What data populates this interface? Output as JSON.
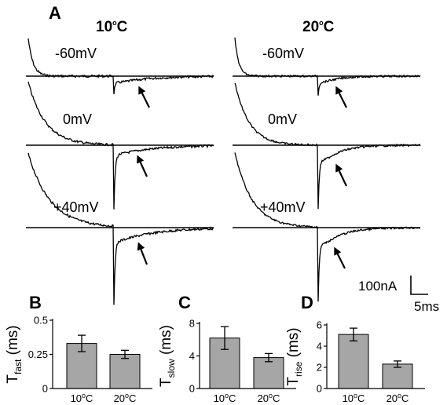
{
  "panels": {
    "A": "A",
    "B": "B",
    "C": "C",
    "D": "D"
  },
  "traces": {
    "columns": [
      {
        "name": "10",
        "unit_sup": "o",
        "unit": "C"
      },
      {
        "name": "20",
        "unit_sup": "o",
        "unit": "C"
      }
    ],
    "voltages": [
      "-60mV",
      "0mV",
      "+40mV"
    ],
    "scale_bar": {
      "current": "100nA",
      "time": "5ms"
    }
  },
  "chart_data": [
    {
      "type": "bar",
      "panel": "B",
      "categories": [
        {
          "main": "10",
          "sup": "o",
          "tail": "C"
        },
        {
          "main": "20",
          "sup": "o",
          "tail": "C"
        }
      ],
      "values": [
        0.33,
        0.25
      ],
      "errors": [
        0.06,
        0.03
      ],
      "ylabel": {
        "main": "T",
        "sub": "fast",
        "tail": " (ms)"
      },
      "ylim": [
        0,
        0.5
      ],
      "yticks": [
        "0",
        "0.25",
        "0.5"
      ],
      "ytick_values": [
        0,
        0.25,
        0.5
      ],
      "bar_color": "#a6a6a6"
    },
    {
      "type": "bar",
      "panel": "C",
      "categories": [
        {
          "main": "10",
          "sup": "o",
          "tail": "C"
        },
        {
          "main": "20",
          "sup": "o",
          "tail": "C"
        }
      ],
      "values": [
        6.2,
        3.8
      ],
      "errors": [
        1.4,
        0.5
      ],
      "ylabel": {
        "main": "T",
        "sub": "slow",
        "tail": " (ms)"
      },
      "ylim": [
        0,
        8
      ],
      "yticks": [
        "0",
        "4",
        "8"
      ],
      "ytick_values": [
        0,
        4,
        8
      ],
      "bar_color": "#a6a6a6"
    },
    {
      "type": "bar",
      "panel": "D",
      "categories": [
        {
          "main": "10",
          "sup": "o",
          "tail": "C"
        },
        {
          "main": "20",
          "sup": "o",
          "tail": "C"
        }
      ],
      "values": [
        5.1,
        2.3
      ],
      "errors": [
        0.6,
        0.3
      ],
      "ylabel": {
        "main": "T",
        "sub": "rise",
        "tail": " (ms)"
      },
      "ylim": [
        0,
        6
      ],
      "yticks": [
        "0",
        "2",
        "4",
        "6"
      ],
      "ytick_values": [
        0,
        2,
        4,
        6
      ],
      "bar_color": "#a6a6a6"
    }
  ]
}
